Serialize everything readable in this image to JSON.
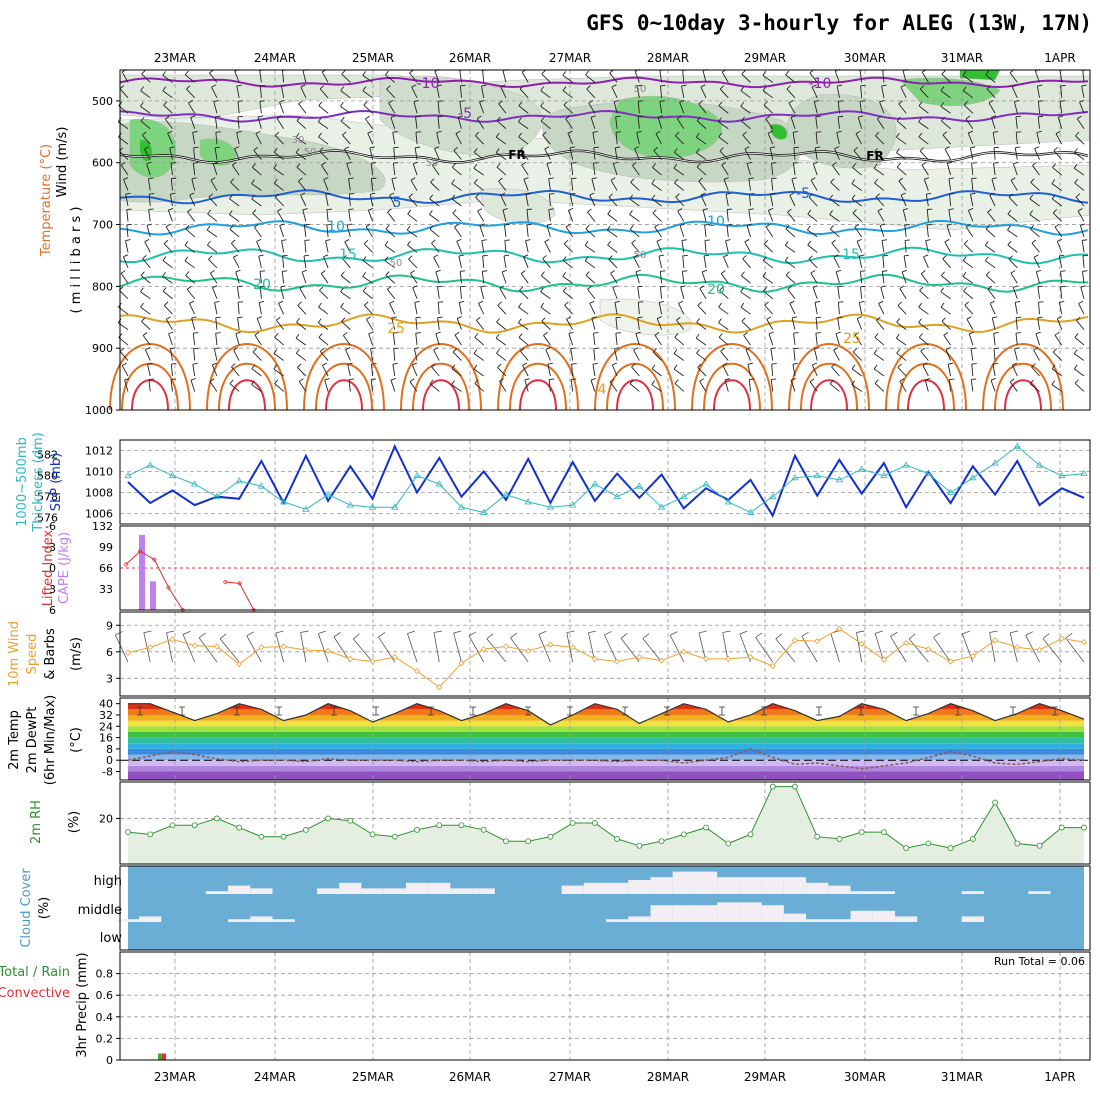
{
  "title": "GFS 0~10day 3-hourly for ALEG (13W, 17N)",
  "dates": [
    "23MAR",
    "24MAR",
    "25MAR",
    "26MAR",
    "27MAR",
    "28MAR",
    "29MAR",
    "30MAR",
    "31MAR",
    "1APR"
  ],
  "panel_labels": {
    "upper": [
      "Wind (m/s)",
      "Temperature (°C)",
      "RH (%)",
      "( m i l l i b a r s )"
    ],
    "thickness": [
      "1000~500mb",
      "Thickness (dm)",
      "SLP (mb)"
    ],
    "cape": [
      "Lifted Index",
      "CAPE (J/kg)"
    ],
    "wind10": [
      "10m Wind",
      "Speed",
      "& Barbs",
      "(m/s)"
    ],
    "temp2m": [
      "2m Temp",
      "2m DewPt",
      "(6hr Min/Max)",
      "(°C)"
    ],
    "rh2m": [
      "2m RH",
      "(%)"
    ],
    "cloud": [
      "Cloud Cover",
      "(%)"
    ],
    "precip": [
      "Total / Rain",
      "Convective",
      "3hr Precip (mm)"
    ]
  },
  "run_total_label": "Run Total = 0.06",
  "contour_labels": {
    "temperature": [
      "-10",
      "-5",
      "-10",
      "5",
      "-5",
      "10",
      "10",
      "15",
      "15",
      "20",
      "20",
      "25",
      "25",
      "4"
    ],
    "freezing": [
      "FR",
      "FR"
    ],
    "rh": [
      "50",
      "30",
      "50",
      "50",
      "50",
      "50"
    ]
  },
  "colors": {
    "slp": "#1030d0",
    "thickness": "#30b8c0",
    "cape": "#c080f0",
    "lifted": "#e03030",
    "wind": "#f0a030",
    "rh2m": "#309030",
    "cloud_bg": "#6aaed6",
    "cloud_fill": "#f2eef4",
    "temp_m10": "#9020b0",
    "temp_m5": "#8030c0",
    "temp_5": "#2060d0",
    "temp_10": "#20a0e0",
    "temp_15": "#20c0b0",
    "temp_20": "#20c090",
    "temp_25": "#e0a020",
    "temp_30": "#e07020",
    "temp_35": "#e03040"
  },
  "chart_data": [
    {
      "type": "line",
      "title": "Wind, Temperature, RH vs Pressure",
      "ylabel": "millibars",
      "ylim": [
        1000,
        450
      ],
      "yticks": [
        500,
        600,
        700,
        800,
        900,
        1000
      ],
      "x": "dates",
      "contours": [
        {
          "name": "-10 °C",
          "level": 470
        },
        {
          "name": "-5 °C",
          "level": 525
        },
        {
          "name": "FR",
          "level": 590
        },
        {
          "name": "5 °C",
          "level": 655
        },
        {
          "name": "10 °C",
          "level": 705
        },
        {
          "name": "15 °C",
          "level": 750
        },
        {
          "name": "20 °C",
          "level": 795
        },
        {
          "name": "25 °C",
          "level": 860
        }
      ]
    },
    {
      "type": "line",
      "title": "1000~500mb Thickness (dm) / SLP (mb)",
      "ylim_slp": [
        1005,
        1013
      ],
      "yticks_slp": [
        1006,
        1008,
        1010,
        1012
      ],
      "ylim_thk": [
        575.4,
        583.4
      ],
      "yticks_thk": [
        576,
        578,
        580,
        582
      ],
      "series": [
        {
          "name": "SLP (mb)",
          "values": [
            1009.0,
            1007.0,
            1008.2,
            1006.8,
            1007.6,
            1007.4,
            1011.0,
            1007.0,
            1011.5,
            1007.2,
            1010.5,
            1007.4,
            1012.4,
            1008.0,
            1011.3,
            1007.6,
            1010.0,
            1007.3,
            1011.2,
            1007.0,
            1010.9,
            1007.2,
            1009.8,
            1007.5,
            1009.7,
            1006.5,
            1008.4,
            1007.3,
            1009.2,
            1005.8,
            1011.5,
            1007.7,
            1011.1,
            1007.9,
            1010.8,
            1006.6,
            1010.0,
            1007.0,
            1010.5,
            1007.8,
            1011.0,
            1006.8,
            1008.4,
            1007.5
          ]
        },
        {
          "name": "1000~500mb Thickness (dm)",
          "values": [
            580.0,
            581.0,
            580.0,
            579.2,
            578.0,
            579.5,
            579.0,
            577.5,
            576.8,
            578.2,
            577.2,
            577.0,
            577.0,
            580.0,
            579.2,
            577.0,
            576.5,
            578.2,
            577.5,
            577.0,
            577.2,
            579.2,
            578.0,
            579.0,
            577.0,
            578.0,
            579.2,
            577.5,
            576.5,
            578.0,
            579.8,
            580.0,
            579.6,
            580.6,
            580.0,
            581.0,
            580.2,
            578.4,
            579.8,
            581.2,
            582.8,
            581.0,
            580.0,
            580.2
          ]
        }
      ]
    },
    {
      "type": "bar",
      "title": "CAPE (J/kg) / Lifted Index",
      "ylim_cape": [
        0,
        132
      ],
      "yticks_cape": [
        33,
        66,
        99,
        132
      ],
      "ylim_li": [
        6,
        -6
      ],
      "yticks_li": [
        -6,
        -3,
        0,
        3,
        6
      ],
      "series": [
        {
          "name": "CAPE (J/kg)",
          "values": [
            0,
            118,
            45,
            0,
            0,
            0,
            0,
            0
          ]
        },
        {
          "name": "Lifted Index",
          "values": [
            -0.5,
            -2.4,
            -1.2,
            2.8,
            6.0,
            null,
            null,
            2.0,
            2.2,
            6.0
          ]
        }
      ]
    },
    {
      "type": "line",
      "title": "10m Wind Speed (m/s)",
      "ylim": [
        1,
        10.5
      ],
      "yticks": [
        3,
        6,
        9
      ],
      "values": [
        5.9,
        6.5,
        7.4,
        6.7,
        6.6,
        4.6,
        6.5,
        6.6,
        6.2,
        6.1,
        5.2,
        4.9,
        5.4,
        3.8,
        2.0,
        4.7,
        6.3,
        6.6,
        6.1,
        6.8,
        6.5,
        5.2,
        4.9,
        5.4,
        5.0,
        6.0,
        5.2,
        5.2,
        5.4,
        4.4,
        7.3,
        7.2,
        8.6,
        6.9,
        5.1,
        7.0,
        6.3,
        4.9,
        5.5,
        7.3,
        6.5,
        6.2,
        7.5,
        7.1
      ]
    },
    {
      "type": "area",
      "title": "2m Temp / 2m DewPt (°C)",
      "ylim": [
        -14,
        44
      ],
      "yticks": [
        -8,
        0,
        8,
        16,
        24,
        32,
        40
      ],
      "series": [
        {
          "name": "2m Temp (°C)",
          "values": [
            40,
            40,
            34,
            28,
            33,
            40,
            36,
            28,
            32,
            40,
            35,
            27,
            33,
            40,
            35,
            28,
            33,
            40,
            35,
            25,
            32,
            40,
            36,
            26,
            33,
            40,
            36,
            27,
            32,
            40,
            35,
            28,
            31,
            40,
            36,
            28,
            33,
            40,
            35,
            28,
            33,
            40,
            35,
            29
          ]
        },
        {
          "name": "2m DewPt (°C)",
          "values": [
            0,
            3,
            6,
            4,
            1,
            -1,
            0,
            0,
            -1,
            1,
            0,
            0,
            0,
            -1,
            0,
            0,
            -1,
            0,
            -1,
            0,
            0,
            0,
            -1,
            0,
            0,
            -2,
            0,
            2,
            8,
            2,
            -3,
            -2,
            -4,
            -6,
            -4,
            -2,
            2,
            6,
            3,
            -2,
            -3,
            -1,
            1,
            0
          ]
        }
      ]
    },
    {
      "type": "area",
      "title": "2m RH (%)",
      "ylim": [
        0,
        36
      ],
      "yticks": [
        20
      ],
      "values": [
        14,
        13,
        17,
        17,
        20,
        16,
        12,
        12,
        15,
        20,
        19,
        13,
        12,
        15,
        17,
        17,
        15,
        10,
        10,
        12,
        18,
        18,
        11,
        8,
        10,
        13,
        16,
        9,
        13,
        34,
        34,
        12,
        11,
        14,
        14,
        7,
        9,
        7,
        11,
        27,
        9,
        8,
        16,
        16
      ]
    },
    {
      "type": "bar",
      "title": "Cloud Cover (%)",
      "yticks": [
        "high",
        "middle",
        "low"
      ],
      "series": [
        {
          "name": "high",
          "values": [
            0,
            0,
            0,
            0,
            10,
            30,
            20,
            0,
            0,
            20,
            40,
            20,
            20,
            40,
            40,
            20,
            20,
            0,
            0,
            0,
            30,
            40,
            40,
            50,
            60,
            80,
            80,
            60,
            60,
            60,
            60,
            40,
            30,
            10,
            10,
            0,
            0,
            0,
            10,
            0,
            0,
            10,
            0,
            0
          ]
        },
        {
          "name": "middle",
          "values": [
            10,
            20,
            0,
            0,
            0,
            10,
            20,
            10,
            0,
            0,
            0,
            0,
            0,
            0,
            0,
            0,
            0,
            0,
            0,
            0,
            0,
            0,
            10,
            20,
            60,
            60,
            60,
            70,
            70,
            60,
            30,
            10,
            10,
            40,
            40,
            20,
            0,
            0,
            20,
            0,
            0,
            0,
            0,
            0
          ]
        },
        {
          "name": "low",
          "values": [
            0,
            0,
            0,
            0,
            0,
            0,
            0,
            0,
            0,
            0,
            0,
            0,
            0,
            0,
            0,
            0,
            0,
            0,
            0,
            0,
            0,
            0,
            0,
            0,
            0,
            0,
            0,
            0,
            0,
            0,
            0,
            0,
            0,
            0,
            0,
            0,
            0,
            0,
            0,
            0,
            0,
            0,
            0,
            0
          ]
        }
      ]
    },
    {
      "type": "bar",
      "title": "3hr Precip (mm)",
      "ylim": [
        0,
        1.0
      ],
      "yticks": [
        0,
        0.2,
        0.4,
        0.6,
        0.8
      ],
      "series": [
        {
          "name": "Total / Rain",
          "values": [
            0,
            0.06,
            0,
            0,
            0,
            0,
            0,
            0
          ]
        },
        {
          "name": "Convective",
          "values": [
            0,
            0.06,
            0,
            0,
            0,
            0,
            0,
            0
          ]
        }
      ]
    }
  ]
}
